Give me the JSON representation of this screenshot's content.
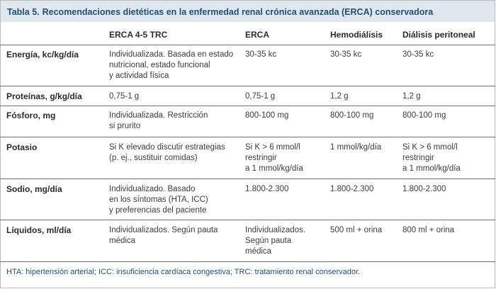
{
  "table": {
    "caption_number": "Tabla 5.",
    "caption_title": "Recomendaciones dietéticas en la enfermedad renal crónica avanzada (ERCA) conservadora",
    "headers": [
      "",
      "ERCA 4-5 TRC",
      "ERCA",
      "Hemodiálisis",
      "Diálisis peritoneal"
    ],
    "rows": [
      {
        "label": "Energía, kc/kg/día",
        "cells": [
          [
            "Individualizada. Basada en estado",
            "nutricional, estado funcional",
            "y actividad física"
          ],
          [
            "30-35 kc"
          ],
          [
            "30-35 kc"
          ],
          [
            "30-35 kc"
          ]
        ]
      },
      {
        "label": "Proteínas, g/kg/día",
        "cells": [
          [
            "0,75-1 g"
          ],
          [
            "0,75-1 g"
          ],
          [
            "1,2 g"
          ],
          [
            "1,2 g"
          ]
        ]
      },
      {
        "label": "Fósforo, mg",
        "cells": [
          [
            "Individualizada. Restricción",
            "si prurito"
          ],
          [
            "800-100 mg"
          ],
          [
            "800-100 mg"
          ],
          [
            "800-100 mg"
          ]
        ]
      },
      {
        "label": "Potasio",
        "cells": [
          [
            "Si K elevado discutir estrategias",
            "(p. ej., sustituir comidas)"
          ],
          [
            "Si K > 6 mmol/l",
            "restringir",
            "a 1 mmol/kg/día"
          ],
          [
            "1 mmol/kg/día"
          ],
          [
            "Si K > 6 mmol/l",
            "restringir",
            "a 1 mmol/kg/día"
          ]
        ]
      },
      {
        "label": "Sodio, mg/día",
        "cells": [
          [
            "Individualizado. Basado",
            "en los síntomas (HTA, ICC)",
            "y preferencias del paciente"
          ],
          [
            "1.800-2.300"
          ],
          [
            "1.800-2.300"
          ],
          [
            "1.800-2.300"
          ]
        ]
      },
      {
        "label": "Líquidos, ml/día",
        "cells": [
          [
            "Individualizados. Según pauta",
            "médica"
          ],
          [
            "Individualizados.",
            "Según pauta",
            "médica"
          ],
          [
            "500 ml + orina"
          ],
          [
            "800 ml + orina"
          ]
        ]
      }
    ],
    "footnote": "HTA: hipertensión arterial; ICC: insuficiencia cardíaca congestiva; TRC: tratamiento renal conservador."
  },
  "colors": {
    "caption_text": "#1f4e79",
    "caption_background": "#dfe8ef",
    "body_text": "#3b3b3b",
    "rule": "#6f6f6f"
  }
}
